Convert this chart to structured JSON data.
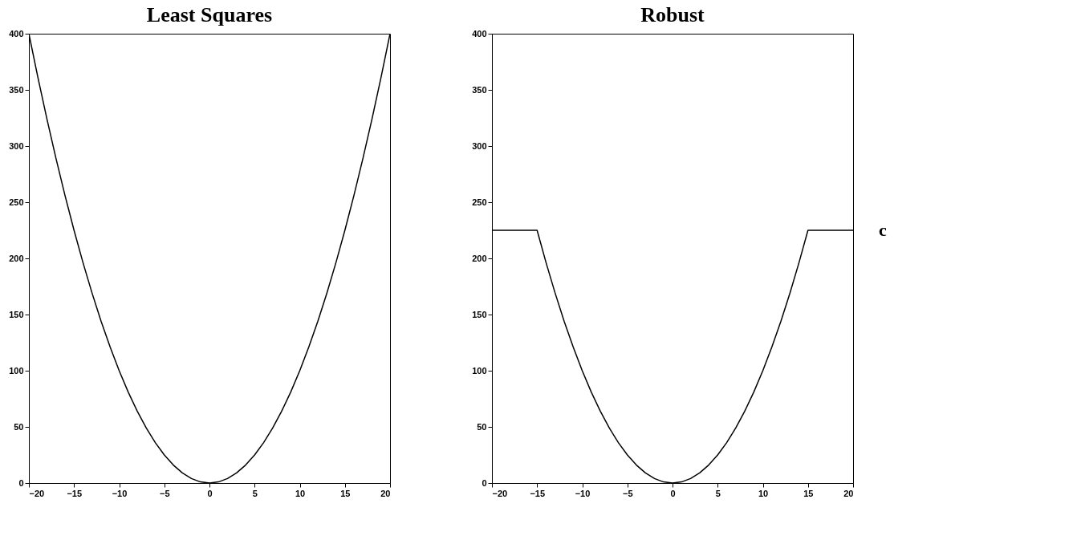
{
  "chart_data": [
    {
      "type": "line",
      "title": "Least Squares",
      "x": [
        -20,
        -19,
        -18,
        -17,
        -16,
        -15,
        -14,
        -13,
        -12,
        -11,
        -10,
        -9,
        -8,
        -7,
        -6,
        -5,
        -4,
        -3,
        -2,
        -1,
        0,
        1,
        2,
        3,
        4,
        5,
        6,
        7,
        8,
        9,
        10,
        11,
        12,
        13,
        14,
        15,
        16,
        17,
        18,
        19,
        20
      ],
      "series": [
        {
          "color": "#000000",
          "values": [
            400,
            361,
            324,
            289,
            256,
            225,
            196,
            169,
            144,
            121,
            100,
            81,
            64,
            49,
            36,
            25,
            16,
            9,
            4,
            1,
            0,
            1,
            4,
            9,
            16,
            25,
            36,
            49,
            64,
            81,
            100,
            121,
            144,
            169,
            196,
            225,
            256,
            289,
            324,
            361,
            400
          ]
        }
      ],
      "xlim": [
        -20,
        20
      ],
      "xticks": [
        -20,
        -15,
        -10,
        -5,
        0,
        5,
        10,
        15,
        20
      ],
      "ylim": [
        0,
        400
      ],
      "yticks": [
        0,
        50,
        100,
        150,
        200,
        250,
        300,
        350,
        400
      ],
      "grid": false
    },
    {
      "type": "line",
      "title": "Robust",
      "x": [
        -20,
        -19,
        -18,
        -17,
        -16,
        -15,
        -14,
        -13,
        -12,
        -11,
        -10,
        -9,
        -8,
        -7,
        -6,
        -5,
        -4,
        -3,
        -2,
        -1,
        0,
        1,
        2,
        3,
        4,
        5,
        6,
        7,
        8,
        9,
        10,
        11,
        12,
        13,
        14,
        15,
        16,
        17,
        18,
        19,
        20
      ],
      "series": [
        {
          "color": "#000000",
          "values": [
            225,
            225,
            225,
            225,
            225,
            225,
            196,
            169,
            144,
            121,
            100,
            81,
            64,
            49,
            36,
            25,
            16,
            9,
            4,
            1,
            0,
            1,
            4,
            9,
            16,
            25,
            36,
            49,
            64,
            81,
            100,
            121,
            144,
            169,
            196,
            225,
            225,
            225,
            225,
            225,
            225
          ]
        }
      ],
      "xlim": [
        -20,
        20
      ],
      "xticks": [
        -20,
        -15,
        -10,
        -5,
        0,
        5,
        10,
        15,
        20
      ],
      "ylim": [
        0,
        400
      ],
      "yticks": [
        0,
        50,
        100,
        150,
        200,
        250,
        300,
        350,
        400
      ],
      "grid": false,
      "annotations": [
        {
          "text": "c",
          "x": 20,
          "y": 225
        }
      ]
    }
  ]
}
